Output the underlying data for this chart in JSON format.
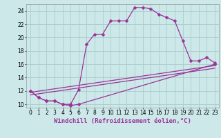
{
  "bg_color": "#cce8e8",
  "grid_color": "#aacccc",
  "line_color": "#993399",
  "xlabel": "Windchill (Refroidissement éolien,°C)",
  "xlim": [
    -0.5,
    23.5
  ],
  "ylim": [
    9.5,
    25.0
  ],
  "yticks": [
    10,
    12,
    14,
    16,
    18,
    20,
    22,
    24
  ],
  "xticks": [
    0,
    1,
    2,
    3,
    4,
    5,
    6,
    7,
    8,
    9,
    10,
    11,
    12,
    13,
    14,
    15,
    16,
    17,
    18,
    19,
    20,
    21,
    22,
    23
  ],
  "curve1_x": [
    0,
    1,
    2,
    3,
    4,
    5,
    6,
    7,
    8,
    9,
    10,
    11,
    12,
    13,
    14,
    15,
    16,
    17,
    18,
    19,
    20,
    21,
    22,
    23
  ],
  "curve1_y": [
    12.0,
    11.0,
    10.5,
    10.5,
    10.0,
    10.0,
    12.2,
    19.0,
    20.5,
    20.5,
    22.5,
    22.5,
    22.5,
    24.5,
    24.5,
    24.3,
    23.5,
    23.0,
    22.5,
    19.5,
    16.5,
    16.5,
    17.0,
    16.2
  ],
  "curve2_x": [
    0,
    1,
    2,
    3,
    4,
    5,
    6,
    23
  ],
  "curve2_y": [
    12.0,
    11.0,
    10.5,
    10.5,
    10.0,
    9.8,
    10.0,
    16.0
  ],
  "line1_x": [
    0,
    23
  ],
  "line1_y": [
    11.8,
    15.8
  ],
  "line2_x": [
    0,
    23
  ],
  "line2_y": [
    11.4,
    15.4
  ],
  "markersize": 2.5,
  "linewidth": 0.9,
  "tick_fontsize": 5.5,
  "label_fontsize": 6.5
}
